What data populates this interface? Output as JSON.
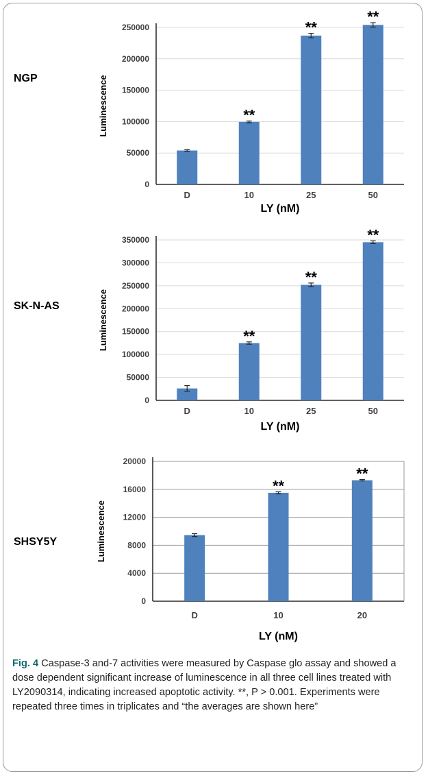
{
  "chart_data": [
    {
      "type": "bar",
      "cell_line": "NGP",
      "categories": [
        "D",
        "10",
        "25",
        "50"
      ],
      "values": [
        54000,
        99500,
        237000,
        254000
      ],
      "errors": [
        1200,
        1500,
        3500,
        3500
      ],
      "significance": [
        "",
        "**",
        "**",
        "**"
      ],
      "xlabel": "LY (nM)",
      "ylabel": "Luminescence",
      "ylim": [
        0,
        250000
      ],
      "yticks": [
        "0",
        "50000",
        "100000",
        "150000",
        "200000",
        "250000"
      ],
      "grid": true,
      "bar_color": "#4f81bd"
    },
    {
      "type": "bar",
      "cell_line": "SK-N-AS",
      "categories": [
        "D",
        "10",
        "25",
        "50"
      ],
      "values": [
        26000,
        125000,
        252000,
        345000
      ],
      "errors": [
        6000,
        2500,
        4000,
        3000
      ],
      "significance": [
        "",
        "**",
        "**",
        "**"
      ],
      "xlabel": "LY (nM)",
      "ylabel": "Luminescence",
      "ylim": [
        0,
        350000
      ],
      "yticks": [
        "0",
        "50000",
        "100000",
        "150000",
        "200000",
        "250000",
        "300000",
        "350000"
      ],
      "grid": true,
      "bar_color": "#4f81bd"
    },
    {
      "type": "bar",
      "cell_line": "SHSY5Y",
      "categories": [
        "D",
        "10",
        "20"
      ],
      "values": [
        9450,
        15500,
        17300
      ],
      "errors": [
        200,
        150,
        100
      ],
      "significance": [
        "",
        "**",
        "**"
      ],
      "xlabel": "LY (nM)",
      "ylabel": "Luminescence",
      "ylim": [
        0,
        20000
      ],
      "yticks": [
        "0",
        "4000",
        "8000",
        "12000",
        "16000",
        "20000"
      ],
      "grid": true,
      "bar_color": "#4f81bd"
    }
  ],
  "caption": {
    "label": "Fig. 4",
    "text": "Caspase-3 and-7 activities were measured by Caspase glo assay and showed a dose dependent significant increase of luminescence in all three cell lines treated with LY2090314, indicating increased apoptotic activity. **, P > 0.001. Experiments were repeated three times in triplicates and “the averages are shown here”"
  }
}
